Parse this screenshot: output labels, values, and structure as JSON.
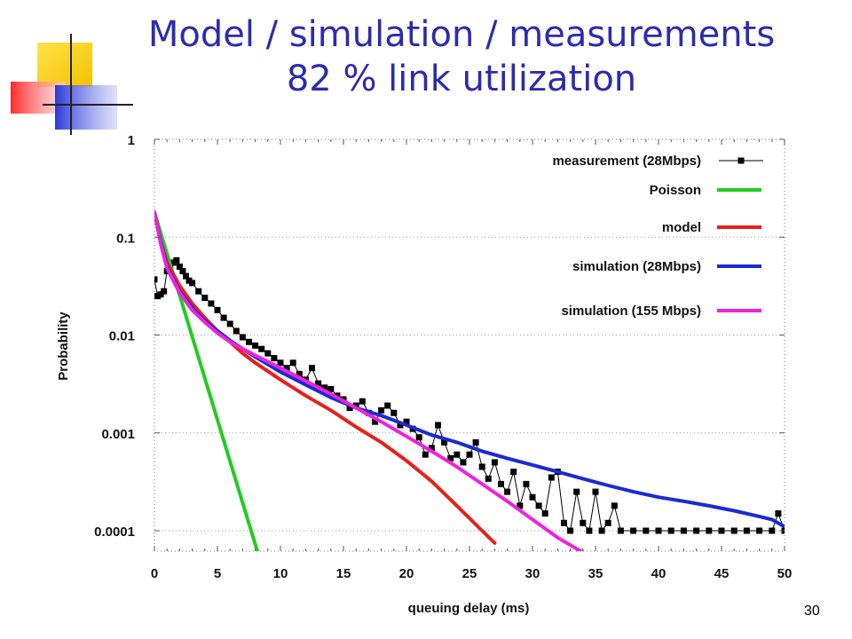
{
  "slide": {
    "title_line1": "Model / simulation / measurements",
    "title_line2": "82 % link utilization",
    "page_number": "30",
    "title_color": "#2b2bb0"
  },
  "chart_data": {
    "type": "line",
    "xlabel": "queuing delay (ms)",
    "ylabel": "Probability",
    "xlim": [
      0,
      50
    ],
    "ylim": [
      6e-05,
      1
    ],
    "yscale": "log",
    "grid": true,
    "legend_position": "top-right",
    "x_ticks": [
      "0",
      "5",
      "10",
      "15",
      "20",
      "25",
      "30",
      "35",
      "40",
      "45",
      "50"
    ],
    "y_ticks": [
      "1",
      "0.1",
      "0.01",
      "0.001",
      "0.0001"
    ],
    "series": [
      {
        "name": "measurement (28Mbps)",
        "color": "#000000",
        "marker": "square",
        "x": [
          0,
          0.25,
          0.5,
          0.75,
          1,
          1.25,
          1.5,
          1.75,
          2,
          2.25,
          2.5,
          2.75,
          3,
          3.5,
          4,
          4.5,
          5,
          5.5,
          6,
          6.5,
          7,
          7.5,
          8,
          8.5,
          9,
          9.5,
          10,
          10.5,
          11,
          11.5,
          12,
          12.5,
          13,
          13.5,
          14,
          14.5,
          15,
          15.5,
          16,
          16.5,
          17,
          17.5,
          18,
          18.5,
          19,
          19.5,
          20,
          20.5,
          21,
          21.5,
          22,
          22.5,
          23,
          23.5,
          24,
          24.5,
          25,
          25.5,
          26,
          26.5,
          27,
          27.5,
          28,
          28.5,
          29,
          29.5,
          30,
          30.5,
          31,
          31.5,
          32,
          32.5,
          33,
          33.5,
          34,
          34.5,
          35,
          35.5,
          36,
          36.5,
          37,
          38,
          39,
          40,
          41,
          42,
          43,
          44,
          45,
          46,
          47,
          48,
          49,
          49.5,
          50
        ],
        "y": [
          0.037,
          0.025,
          0.026,
          0.028,
          0.045,
          0.05,
          0.055,
          0.058,
          0.05,
          0.045,
          0.04,
          0.036,
          0.034,
          0.028,
          0.024,
          0.021,
          0.018,
          0.015,
          0.013,
          0.011,
          0.0095,
          0.0085,
          0.0078,
          0.0072,
          0.0065,
          0.0058,
          0.0052,
          0.0046,
          0.0052,
          0.004,
          0.0035,
          0.0046,
          0.0032,
          0.0029,
          0.0028,
          0.0024,
          0.0022,
          0.0018,
          0.0019,
          0.0021,
          0.0016,
          0.0013,
          0.0017,
          0.0019,
          0.0016,
          0.0012,
          0.0013,
          0.0011,
          0.0009,
          0.0006,
          0.0007,
          0.0012,
          0.0008,
          0.00055,
          0.0006,
          0.0005,
          0.0006,
          0.0008,
          0.00045,
          0.00034,
          0.0005,
          0.0003,
          0.00025,
          0.0004,
          0.00018,
          0.0003,
          0.00022,
          0.00018,
          0.00015,
          0.00035,
          0.0004,
          0.00012,
          0.0001,
          0.00025,
          0.00012,
          0.0001,
          0.00025,
          0.0001,
          0.00012,
          0.00018,
          0.0001,
          0.0001,
          0.0001,
          0.0001,
          0.0001,
          0.0001,
          0.0001,
          0.0001,
          0.0001,
          0.0001,
          0.0001,
          0.0001,
          0.0001,
          0.00015,
          0.0001
        ]
      },
      {
        "name": "Poisson",
        "color": "#22cc22",
        "x": [
          0,
          8.2
        ],
        "y": [
          0.18,
          6e-05
        ]
      },
      {
        "name": "model",
        "color": "#e8201a",
        "x": [
          0,
          0.5,
          1,
          2,
          3,
          4,
          5,
          6,
          7,
          8,
          10,
          12,
          14,
          16,
          18,
          20,
          22,
          24,
          26,
          27
        ],
        "y": [
          0.18,
          0.09,
          0.055,
          0.032,
          0.021,
          0.015,
          0.011,
          0.0085,
          0.0065,
          0.0052,
          0.0035,
          0.0024,
          0.0017,
          0.00115,
          0.0008,
          0.00052,
          0.00032,
          0.00018,
          0.0001,
          7.5e-05
        ]
      },
      {
        "name": "simulation (28Mbps)",
        "color": "#1a2ad0",
        "x": [
          0,
          0.5,
          1,
          2,
          3,
          4,
          5,
          6,
          7,
          8,
          10,
          12,
          14,
          16,
          18,
          20,
          22,
          24,
          26,
          28,
          30,
          32,
          34,
          36,
          38,
          40,
          42,
          44,
          46,
          48,
          49,
          50
        ],
        "y": [
          0.18,
          0.09,
          0.05,
          0.028,
          0.019,
          0.014,
          0.011,
          0.0088,
          0.0072,
          0.006,
          0.0042,
          0.0031,
          0.0023,
          0.0018,
          0.0015,
          0.0012,
          0.00095,
          0.0008,
          0.00065,
          0.00055,
          0.00047,
          0.0004,
          0.00034,
          0.00029,
          0.00025,
          0.00022,
          0.0002,
          0.00018,
          0.00016,
          0.00014,
          0.00013,
          0.00011
        ]
      },
      {
        "name": "simulation (155 Mbps)",
        "color": "#ee22dd",
        "x": [
          0,
          0.5,
          1,
          2,
          3,
          4,
          5,
          6,
          7,
          8,
          10,
          12,
          14,
          16,
          18,
          20,
          22,
          24,
          26,
          28,
          30,
          32,
          34
        ],
        "y": [
          0.18,
          0.085,
          0.048,
          0.027,
          0.018,
          0.0135,
          0.0105,
          0.0085,
          0.0072,
          0.0062,
          0.0046,
          0.0034,
          0.0025,
          0.0018,
          0.0013,
          0.00092,
          0.00065,
          0.00045,
          0.0003,
          0.0002,
          0.00013,
          8.5e-05,
          6e-05
        ]
      }
    ]
  }
}
